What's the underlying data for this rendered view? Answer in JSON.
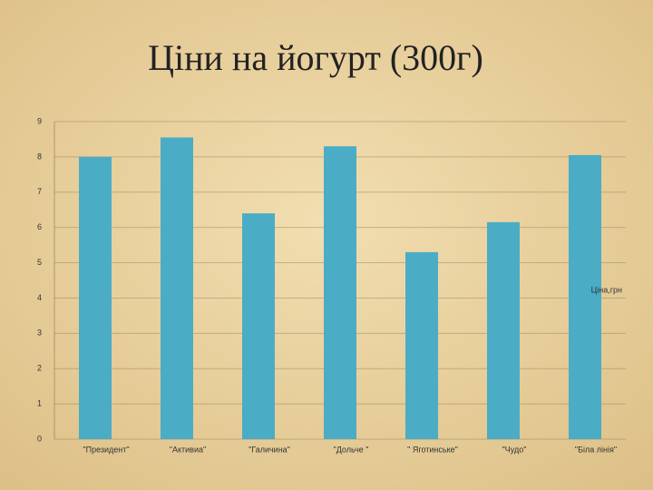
{
  "chart_data": {
    "type": "bar",
    "title": "Ціни на йогурт (300г)",
    "categories": [
      "\"Президент\"",
      "\"Активиа\"",
      "\"Галичина\"",
      "\"Дольче \"",
      "\" Яготинське\"",
      "\"Чудо\"",
      "\"Біла лінія\""
    ],
    "series": [
      {
        "name": "Ціна,грн",
        "color": "#4bacc6",
        "values": [
          8.0,
          8.55,
          6.4,
          8.3,
          5.3,
          6.15,
          8.05
        ]
      }
    ],
    "ylim": [
      0,
      9
    ],
    "yticks": [
      0,
      1,
      2,
      3,
      4,
      5,
      6,
      7,
      8,
      9
    ],
    "grid": true,
    "legend": "right"
  }
}
